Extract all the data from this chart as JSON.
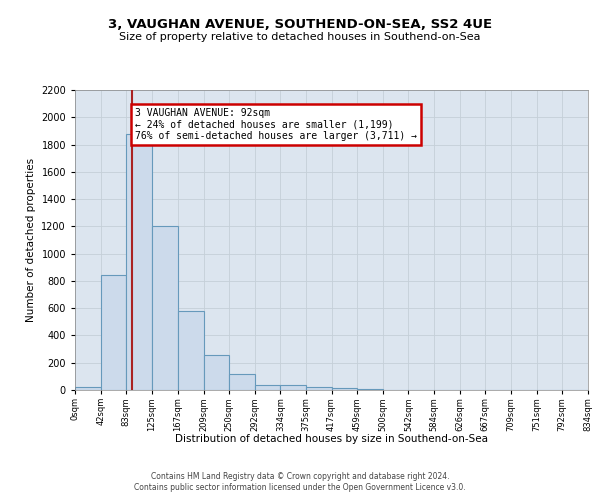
{
  "title_line1": "3, VAUGHAN AVENUE, SOUTHEND-ON-SEA, SS2 4UE",
  "title_line2": "Size of property relative to detached houses in Southend-on-Sea",
  "xlabel": "Distribution of detached houses by size in Southend-on-Sea",
  "ylabel": "Number of detached properties",
  "footer_line1": "Contains HM Land Registry data © Crown copyright and database right 2024.",
  "footer_line2": "Contains public sector information licensed under the Open Government Licence v3.0.",
  "bin_edges": [
    0,
    42,
    83,
    125,
    167,
    209,
    250,
    292,
    334,
    375,
    417,
    459,
    500,
    542,
    584,
    626,
    667,
    709,
    751,
    792,
    834
  ],
  "bar_heights": [
    25,
    840,
    1880,
    1200,
    580,
    255,
    120,
    40,
    35,
    22,
    15,
    8,
    0,
    0,
    0,
    0,
    0,
    0,
    0,
    0
  ],
  "bar_color": "#ccdaeb",
  "bar_edge_color": "#6699bb",
  "grid_color": "#c5cfd8",
  "property_size": 92,
  "annotation_line1": "3 VAUGHAN AVENUE: 92sqm",
  "annotation_line2": "← 24% of detached houses are smaller (1,199)",
  "annotation_line3": "76% of semi-detached houses are larger (3,711) →",
  "annotation_box_facecolor": "#ffffff",
  "annotation_box_edgecolor": "#cc0000",
  "vline_color": "#aa2222",
  "ylim_max": 2200,
  "yticks": [
    0,
    200,
    400,
    600,
    800,
    1000,
    1200,
    1400,
    1600,
    1800,
    2000,
    2200
  ],
  "bg_color": "#dce5ef"
}
